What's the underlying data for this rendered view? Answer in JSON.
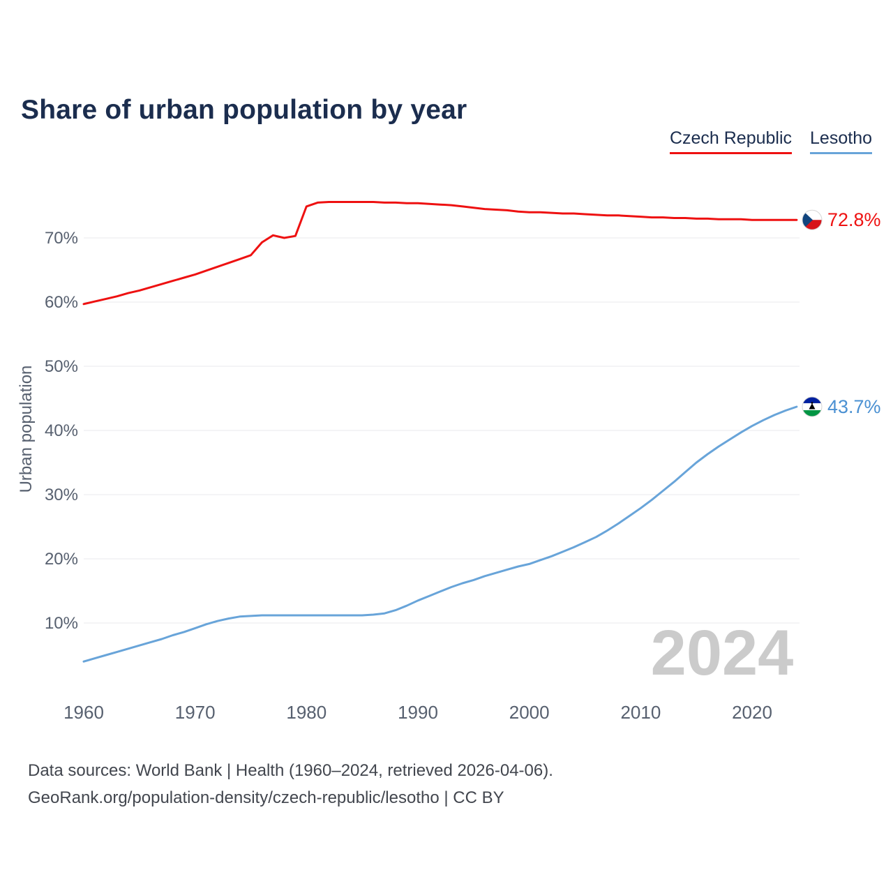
{
  "title": "Share of urban population by year",
  "watermark": "2024",
  "legend": {
    "items": [
      {
        "label": "Czech Republic",
        "color": "#ee1111"
      },
      {
        "label": "Lesotho",
        "color": "#68a4d9"
      }
    ]
  },
  "footer": {
    "line1": "Data sources: World Bank | Health (1960–2024, retrieved 2026-04-06).",
    "line2": "GeoRank.org/population-density/czech-republic/lesotho | CC BY"
  },
  "chart_data": {
    "type": "line",
    "title": "Share of urban population by year",
    "xlabel": "",
    "ylabel": "Urban population",
    "grid": true,
    "legend_position": "top-right",
    "xlim": [
      1960,
      2024
    ],
    "ylim": [
      0,
      79
    ],
    "x_ticks": [
      1960,
      1970,
      1980,
      1990,
      2000,
      2010,
      2020
    ],
    "y_ticks": [
      10,
      20,
      30,
      40,
      50,
      60,
      70
    ],
    "y_tick_suffix": "%",
    "x": [
      1960,
      1961,
      1962,
      1963,
      1964,
      1965,
      1966,
      1967,
      1968,
      1969,
      1970,
      1971,
      1972,
      1973,
      1974,
      1975,
      1976,
      1977,
      1978,
      1979,
      1980,
      1981,
      1982,
      1983,
      1984,
      1985,
      1986,
      1987,
      1988,
      1989,
      1990,
      1991,
      1992,
      1993,
      1994,
      1995,
      1996,
      1997,
      1998,
      1999,
      2000,
      2001,
      2002,
      2003,
      2004,
      2005,
      2006,
      2007,
      2008,
      2009,
      2010,
      2011,
      2012,
      2013,
      2014,
      2015,
      2016,
      2017,
      2018,
      2019,
      2020,
      2021,
      2022,
      2023,
      2024
    ],
    "series": [
      {
        "name": "Czech Republic",
        "color": "#ee1111",
        "label_color": "#ee1111",
        "end_label": "72.8%",
        "flag": "czech-republic",
        "values": [
          59.7,
          60.1,
          60.5,
          60.9,
          61.4,
          61.8,
          62.3,
          62.8,
          63.3,
          63.8,
          64.3,
          64.9,
          65.5,
          66.1,
          66.7,
          67.3,
          69.3,
          70.4,
          70.0,
          70.3,
          74.9,
          75.5,
          75.6,
          75.6,
          75.6,
          75.6,
          75.6,
          75.5,
          75.5,
          75.4,
          75.4,
          75.3,
          75.2,
          75.1,
          74.9,
          74.7,
          74.5,
          74.4,
          74.3,
          74.1,
          74.0,
          74.0,
          73.9,
          73.8,
          73.8,
          73.7,
          73.6,
          73.5,
          73.5,
          73.4,
          73.3,
          73.2,
          73.2,
          73.1,
          73.1,
          73.0,
          73.0,
          72.9,
          72.9,
          72.9,
          72.8,
          72.8,
          72.8,
          72.8,
          72.8
        ]
      },
      {
        "name": "Lesotho",
        "color": "#68a4d9",
        "label_color": "#4a90d2",
        "end_label": "43.7%",
        "flag": "lesotho",
        "values": [
          4.0,
          4.5,
          5.0,
          5.5,
          6.0,
          6.5,
          7.0,
          7.5,
          8.1,
          8.6,
          9.2,
          9.8,
          10.3,
          10.7,
          11.0,
          11.1,
          11.2,
          11.2,
          11.2,
          11.2,
          11.2,
          11.2,
          11.2,
          11.2,
          11.2,
          11.2,
          11.3,
          11.5,
          12.0,
          12.7,
          13.5,
          14.2,
          14.9,
          15.6,
          16.2,
          16.7,
          17.3,
          17.8,
          18.3,
          18.8,
          19.2,
          19.8,
          20.4,
          21.1,
          21.8,
          22.6,
          23.4,
          24.4,
          25.5,
          26.7,
          27.9,
          29.2,
          30.6,
          32.0,
          33.5,
          35.0,
          36.3,
          37.5,
          38.6,
          39.7,
          40.7,
          41.6,
          42.4,
          43.1,
          43.7
        ]
      }
    ]
  }
}
